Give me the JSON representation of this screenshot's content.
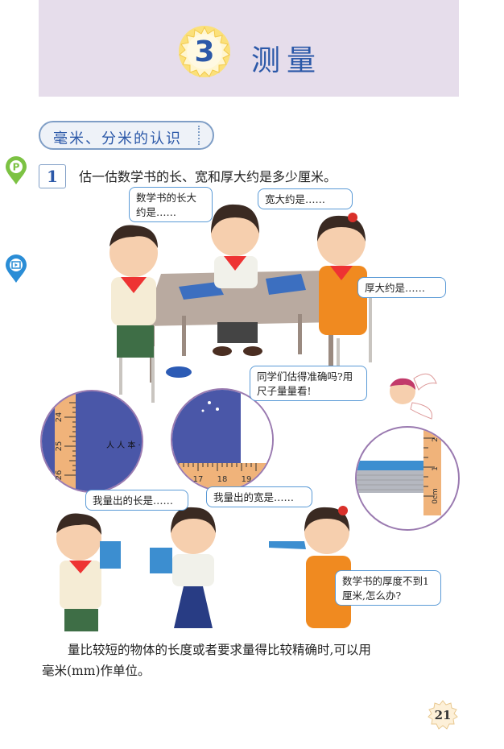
{
  "chapter": {
    "number": "3",
    "title": "测量"
  },
  "section": {
    "title": "毫米、分米的认识"
  },
  "example": {
    "number": "1",
    "question": "估一估数学书的长、宽和厚大约是多少厘米。"
  },
  "bubbles": {
    "boy_length_guess": "数学书的长大约是……",
    "girl_width_guess": "宽大约是……",
    "girl_thickness_guess": "厚大约是……",
    "angel_prompt": "同学们估得准确吗?用尺子量量看!",
    "boy_measured_length": "我量出的长是……",
    "girl_measured_width": "我量出的宽是……",
    "girl_thickness_question": "数学书的厚度不到1厘米,怎么办?"
  },
  "rulers": {
    "length_ticks": [
      "24",
      "25",
      "26"
    ],
    "width_ticks": [
      "17",
      "18",
      "19"
    ],
    "thickness_ticks": [
      "2",
      "1",
      "0cm"
    ]
  },
  "body_text": {
    "line1": "量比较短的物体的长度或者要求量得比较精确时,可以用",
    "line2": "毫米(mm)作单位。"
  },
  "page": {
    "number": "21"
  },
  "colors": {
    "banner": "#e6ddeb",
    "title_blue": "#2b58a8",
    "bubble_border": "#5a9ad6",
    "ruler_orange": "#f0b37a",
    "book_blue": "#4a57a8",
    "pin_green": "#7cc243",
    "pin_blue": "#2a8dd6"
  }
}
